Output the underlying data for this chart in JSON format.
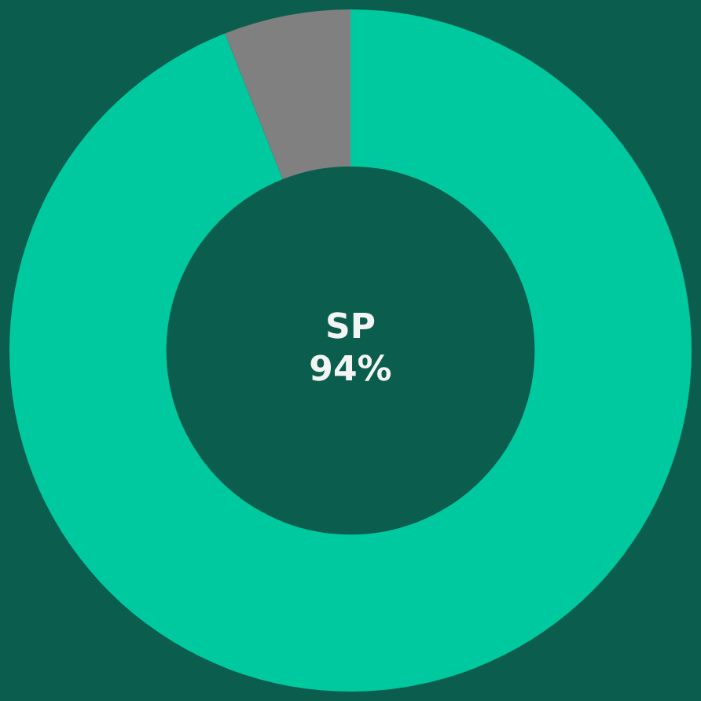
{
  "chart_data": {
    "type": "donut",
    "categories": [
      "SP",
      null
    ],
    "values": [
      94,
      6
    ],
    "value_labels": [
      "94%",
      null
    ],
    "colors": [
      "#00c9a0",
      "#808080"
    ],
    "legend": false
  }
}
